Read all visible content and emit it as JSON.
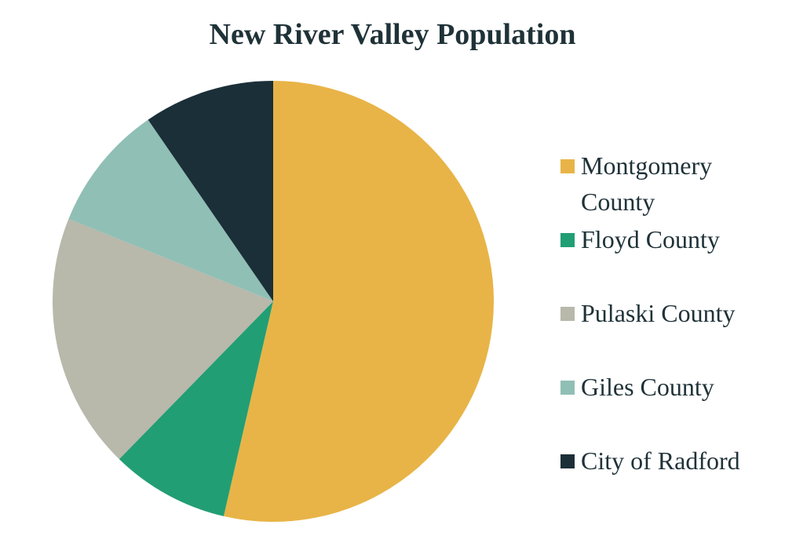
{
  "chart_data": {
    "type": "pie",
    "title": "New River Valley Population",
    "categories": [
      "Montgomery County",
      "Floyd County",
      "Pulaski County",
      "Giles County",
      "City of Radford"
    ],
    "values": [
      53.6,
      8.7,
      18.8,
      9.3,
      9.6
    ],
    "colors": [
      "#e8b447",
      "#229e74",
      "#b8b8ab",
      "#90bfb5",
      "#1b2f38"
    ],
    "legend": "right"
  }
}
